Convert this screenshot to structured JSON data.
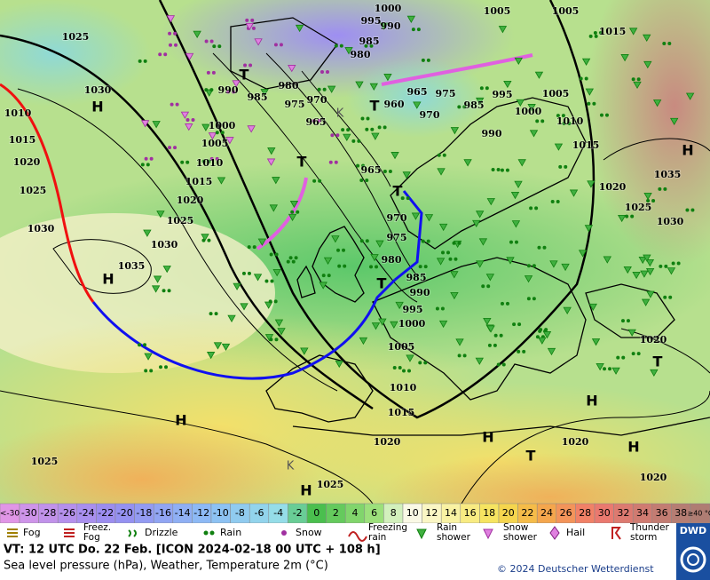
{
  "map": {
    "isobar_labels": [
      1000,
      1005,
      1005,
      995,
      990,
      1025,
      985,
      980,
      1015,
      1030,
      990,
      985,
      980,
      975,
      970,
      965,
      960,
      965,
      975,
      970,
      985,
      995,
      1005,
      1000,
      990,
      1010,
      1015,
      1035,
      1020,
      1025,
      1030,
      1010,
      1015,
      1020,
      1025,
      1030,
      1000,
      1005,
      1010,
      1015,
      1020,
      1025,
      1030,
      1035,
      965,
      970,
      975,
      980,
      985,
      990,
      995,
      1000,
      1005,
      1010,
      1015,
      1020,
      1025,
      1025,
      1020,
      1020,
      1020
    ],
    "pressure_centers": [
      "H",
      "H",
      "H",
      "H",
      "H",
      "H",
      "H",
      "H",
      "T",
      "T",
      "T",
      "T",
      "T",
      "T",
      "T",
      "K",
      "K"
    ]
  },
  "temperature_scale": {
    "low_label": "<-30",
    "values": [
      -30,
      -28,
      -26,
      -24,
      -22,
      -20,
      -18,
      -16,
      -14,
      -12,
      -10,
      -8,
      -6,
      -4,
      -2,
      0,
      2,
      4,
      6,
      8,
      10,
      12,
      14,
      16,
      18,
      20,
      22,
      24,
      26,
      28,
      30,
      32,
      34,
      36,
      38
    ],
    "high_label": "≥40 °C"
  },
  "weather_legend": [
    "Fog",
    "Freez. Fog",
    "Drizzle",
    "Rain",
    "Snow",
    "Freezing rain",
    "Rain shower",
    "Snow shower",
    "Hail",
    "Thunder storm"
  ],
  "footer": {
    "valid_time": "VT: 12 UTC Do.  22 Feb. [ICON 2024-02-18  00 UTC + 108 h]",
    "description": "Sea level pressure (hPa), Weather, Temperature 2m (°C)",
    "copyright": "© 2024 Deutscher Wetterdienst",
    "logo": "DWD"
  }
}
